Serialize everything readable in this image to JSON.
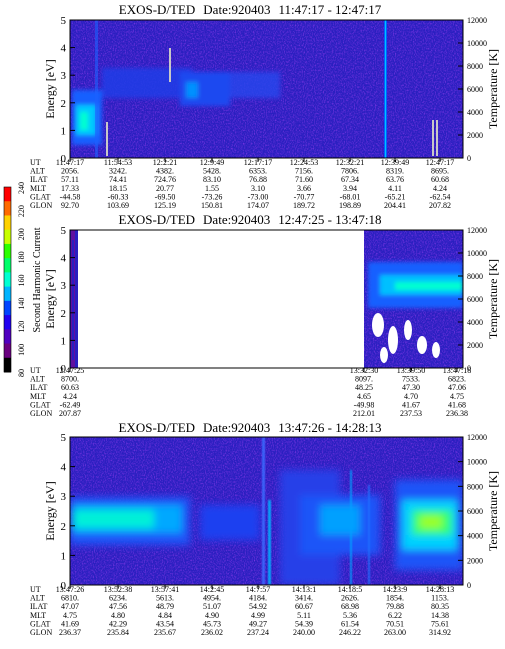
{
  "colorbar": {
    "label": "Second Harmonic Current",
    "ticks": [
      "240",
      "220",
      "200",
      "180",
      "160",
      "140",
      "120",
      "100",
      "80"
    ],
    "colors": [
      "#ff0000",
      "#ff6a00",
      "#ffd200",
      "#c8ff00",
      "#2cff00",
      "#00ff6a",
      "#00ffd2",
      "#00b4ff",
      "#0044ff",
      "#2000f0",
      "#5000c0",
      "#6a0080",
      "#000000"
    ]
  },
  "chart_data": [
    {
      "type": "heatmap",
      "title": "EXOS-D/TED",
      "date_label": "Date:920403",
      "time_range": "11:47:17 - 12:47:17",
      "ylabel": "Energy [eV]",
      "y2label": "Temperature [K]",
      "ylim": [
        0,
        5
      ],
      "y2lim": [
        0,
        12000
      ],
      "yticks": [
        "0",
        "1",
        "2",
        "3",
        "4",
        "5"
      ],
      "y2ticks": [
        "0",
        "2000",
        "4000",
        "6000",
        "8000",
        "10000",
        "12000"
      ],
      "table": {
        "row_labels": [
          "UT",
          "ALT",
          "ILAT",
          "MLT",
          "GLAT",
          "GLON"
        ],
        "columns": [
          [
            "11:47:17",
            "2056.",
            "57.11",
            "17.33",
            "-44.58",
            "92.70"
          ],
          [
            "11:54:53",
            "3242.",
            "74.41",
            "18.15",
            "-60.33",
            "103.69"
          ],
          [
            "12:2:21",
            "4382.",
            "724.76",
            "20.77",
            "-69.50",
            "125.19"
          ],
          [
            "12:9:49",
            "5428.",
            "83.10",
            "1.55",
            "-73.26",
            "150.81"
          ],
          [
            "12:17:17",
            "6353.",
            "76.88",
            "3.10",
            "-73.00",
            "174.07"
          ],
          [
            "12:24:53",
            "7156.",
            "71.60",
            "3.66",
            "-70.77",
            "189.72"
          ],
          [
            "12:32:21",
            "7806.",
            "67.34",
            "3.94",
            "-68.01",
            "198.89"
          ],
          [
            "12:39:49",
            "8319.",
            "63.76",
            "4.11",
            "-65.21",
            "204.41"
          ],
          [
            "12:47:17",
            "8695.",
            "60.68",
            "4.24",
            "-62.54",
            "207.82"
          ]
        ]
      }
    },
    {
      "type": "heatmap",
      "title": "EXOS-D/TED",
      "date_label": "Date:920403",
      "time_range": "12:47:25 - 13:47:18",
      "ylabel": "Energy [eV]",
      "y2label": "Temperature [K]",
      "ylim": [
        0,
        5
      ],
      "y2lim": [
        0,
        12000
      ],
      "yticks": [
        "0",
        "1",
        "2",
        "3",
        "4",
        "5"
      ],
      "y2ticks": [
        "0",
        "2000",
        "4000",
        "6000",
        "8000",
        "10000",
        "12000"
      ],
      "table": {
        "row_labels": [
          "UT",
          "ALT",
          "ILAT",
          "MLT",
          "GLAT",
          "GLON"
        ],
        "columns": [
          [
            "12:47:25",
            "8700.",
            "60.63",
            "4.24",
            "-62.49",
            "207.87"
          ],
          [
            "13:32:30",
            "8097.",
            "48.25",
            "4.65",
            "-49.98",
            "212.01"
          ],
          [
            "13:39:50",
            "7533.",
            "47.30",
            "4.70",
            "41.67",
            "237.53"
          ],
          [
            "13:47:18",
            "6823.",
            "47.06",
            "4.75",
            "41.68",
            "236.38"
          ]
        ]
      }
    },
    {
      "type": "heatmap",
      "title": "EXOS-D/TED",
      "date_label": "Date:920403",
      "time_range": "13:47:26 - 14:28:13",
      "ylabel": "Energy [eV]",
      "y2label": "Temperature [K]",
      "ylim": [
        0,
        5
      ],
      "y2lim": [
        0,
        12000
      ],
      "yticks": [
        "0",
        "1",
        "2",
        "3",
        "4",
        "5"
      ],
      "y2ticks": [
        "0",
        "2000",
        "4000",
        "6000",
        "8000",
        "10000",
        "12000"
      ],
      "table": {
        "row_labels": [
          "UT",
          "ALT",
          "ILAT",
          "MLT",
          "GLAT",
          "GLON"
        ],
        "columns": [
          [
            "13:47:26",
            "6810.",
            "47.07",
            "4.75",
            "41.69",
            "236.37"
          ],
          [
            "13:52:38",
            "6234.",
            "47.56",
            "4.80",
            "42.29",
            "235.84"
          ],
          [
            "13:57:41",
            "5613.",
            "48.79",
            "4.84",
            "43.54",
            "235.67"
          ],
          [
            "14:2:45",
            "4954.",
            "51.07",
            "4.90",
            "45.73",
            "236.02"
          ],
          [
            "14:7:57",
            "4184.",
            "54.92",
            "4.99",
            "49.27",
            "237.24"
          ],
          [
            "14:13:1",
            "3414.",
            "60.67",
            "5.11",
            "54.39",
            "240.00"
          ],
          [
            "14:18:5",
            "2626.",
            "68.98",
            "5.36",
            "61.54",
            "246.22"
          ],
          [
            "14:23:9",
            "1854.",
            "79.88",
            "6.22",
            "70.51",
            "263.00"
          ],
          [
            "14:28:13",
            "1153.",
            "80.35",
            "14.38",
            "75.61",
            "314.92"
          ]
        ]
      }
    }
  ]
}
